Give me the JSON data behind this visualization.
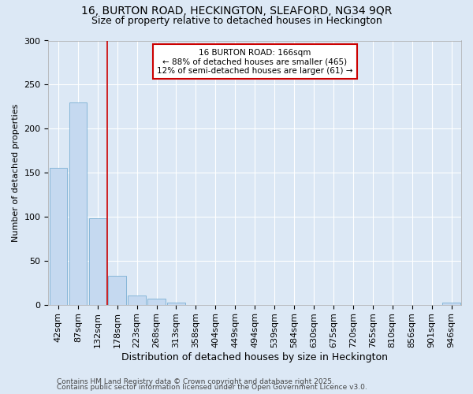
{
  "title1": "16, BURTON ROAD, HECKINGTON, SLEAFORD, NG34 9QR",
  "title2": "Size of property relative to detached houses in Heckington",
  "xlabel": "Distribution of detached houses by size in Heckington",
  "ylabel": "Number of detached properties",
  "categories": [
    "42sqm",
    "87sqm",
    "132sqm",
    "178sqm",
    "223sqm",
    "268sqm",
    "313sqm",
    "358sqm",
    "404sqm",
    "449sqm",
    "494sqm",
    "539sqm",
    "584sqm",
    "630sqm",
    "675sqm",
    "720sqm",
    "765sqm",
    "810sqm",
    "856sqm",
    "901sqm",
    "946sqm"
  ],
  "values": [
    155,
    230,
    98,
    33,
    10,
    7,
    2,
    0,
    0,
    0,
    0,
    0,
    0,
    0,
    0,
    0,
    0,
    0,
    0,
    0,
    2
  ],
  "bar_color": "#c5d9f0",
  "bar_edge_color": "#7bafd4",
  "vline_color": "#cc0000",
  "vline_pos": 2.5,
  "annotation_text": "16 BURTON ROAD: 166sqm\n← 88% of detached houses are smaller (465)\n12% of semi-detached houses are larger (61) →",
  "annotation_box_facecolor": "#ffffff",
  "annotation_box_edgecolor": "#cc0000",
  "ylim": [
    0,
    300
  ],
  "yticks": [
    0,
    50,
    100,
    150,
    200,
    250,
    300
  ],
  "footnote1": "Contains HM Land Registry data © Crown copyright and database right 2025.",
  "footnote2": "Contains public sector information licensed under the Open Government Licence v3.0.",
  "bg_color": "#dce8f5",
  "grid_color": "#ffffff",
  "title1_fontsize": 10,
  "title2_fontsize": 9,
  "xlabel_fontsize": 9,
  "ylabel_fontsize": 8,
  "tick_fontsize": 8,
  "annot_fontsize": 7.5,
  "footnote_fontsize": 6.5
}
